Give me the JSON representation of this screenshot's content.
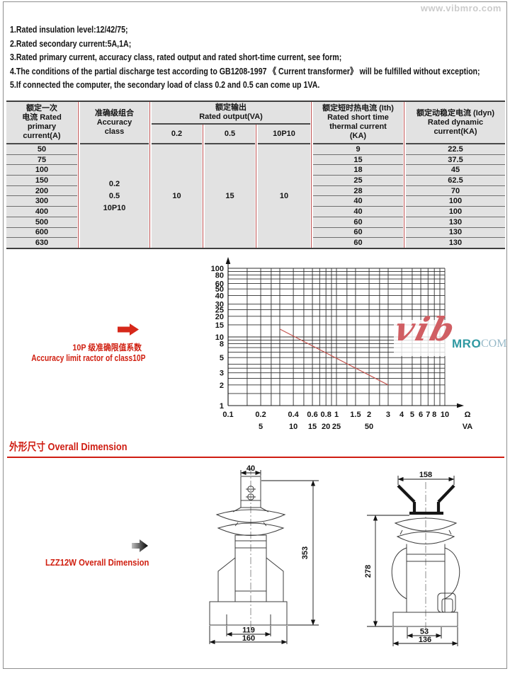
{
  "watermark": "www.vibmro.com",
  "logo": {
    "script": "vib",
    "brand": "MRO",
    "tld": ".COM"
  },
  "notes": [
    "1.Rated insulation level:12/42/75;",
    "2.Rated secondary current:5A,1A;",
    "3.Rated primary current, accuracy class, rated output and rated short-time current, see form;",
    "4.The conditions of the partial discharge test according to GB1208-1997 《 Current transformer》 will be fulfilled without exception;",
    "5.If connected the computer, the secondary load of class 0.2 and 0.5 can come up 1VA."
  ],
  "table": {
    "headers": {
      "primary": "额定一次\n电流 Rated\nprimary\ncurrent(A)",
      "accuracy": "准确级组合\nAccuracy\nclass",
      "output_group": "额定输出\nRated output(VA)",
      "output_cols": [
        "0.2",
        "0.5",
        "10P10"
      ],
      "ith": "额定短时热电流 (Ith)\nRated short time\nthermal current\n(KA)",
      "idyn": "额定动稳定电流 (Idyn)\nRated dynamic\ncurrent(KA)"
    },
    "accuracy_value": "0.2\n0.5\n10P10",
    "output_values": [
      "10",
      "15",
      "10"
    ],
    "rows": [
      {
        "primary": "50",
        "ith": "9",
        "idyn": "22.5"
      },
      {
        "primary": "75",
        "ith": "15",
        "idyn": "37.5"
      },
      {
        "primary": "100",
        "ith": "18",
        "idyn": "45"
      },
      {
        "primary": "150",
        "ith": "25",
        "idyn": "62.5"
      },
      {
        "primary": "200",
        "ith": "28",
        "idyn": "70"
      },
      {
        "primary": "300",
        "ith": "40",
        "idyn": "100"
      },
      {
        "primary": "400",
        "ith": "40",
        "idyn": "100"
      },
      {
        "primary": "500",
        "ith": "60",
        "idyn": "130"
      },
      {
        "primary": "600",
        "ith": "60",
        "idyn": "130"
      },
      {
        "primary": "630",
        "ith": "60",
        "idyn": "130"
      }
    ]
  },
  "chart_annotation": {
    "line1": "10P 级准确限值系数",
    "line2": "Accuracy limit ractor of class10P"
  },
  "chart_data": {
    "type": "line",
    "title": "Accuracy limit factor of class 10P vs burden",
    "grid": true,
    "x_axis": {
      "scale": "log",
      "min": 0.1,
      "max": 10,
      "unit_primary": "Ω",
      "unit_secondary": "VA",
      "gridlines": [
        0.1,
        0.15,
        0.2,
        0.25,
        0.3,
        0.4,
        0.5,
        0.6,
        0.7,
        0.8,
        0.9,
        1,
        1.25,
        1.5,
        2,
        2.5,
        3,
        4,
        5,
        6,
        7,
        8,
        9,
        10
      ],
      "ticks_ohm": [
        {
          "v": 0.1,
          "label": "0.1"
        },
        {
          "v": 0.2,
          "label": "0.2"
        },
        {
          "v": 0.4,
          "label": "0.4"
        },
        {
          "v": 0.6,
          "label": "0.6"
        },
        {
          "v": 0.8,
          "label": "0.8"
        },
        {
          "v": 1,
          "label": "1"
        },
        {
          "v": 1.5,
          "label": "1.5"
        },
        {
          "v": 2,
          "label": "2"
        },
        {
          "v": 3,
          "label": "3"
        },
        {
          "v": 4,
          "label": "4"
        },
        {
          "v": 5,
          "label": "5"
        },
        {
          "v": 6,
          "label": "6"
        },
        {
          "v": 7,
          "label": "7"
        },
        {
          "v": 8,
          "label": "8"
        },
        {
          "v": 10,
          "label": "10"
        }
      ],
      "ticks_va": [
        {
          "v": 0.2,
          "label": "5"
        },
        {
          "v": 0.4,
          "label": "10"
        },
        {
          "v": 0.6,
          "label": "15"
        },
        {
          "v": 0.8,
          "label": "20"
        },
        {
          "v": 1,
          "label": "25"
        },
        {
          "v": 2,
          "label": "50"
        }
      ]
    },
    "y_axis": {
      "scale": "log",
      "min": 1,
      "max": 100,
      "gridlines": [
        1,
        1.5,
        2,
        2.5,
        3,
        3.5,
        4,
        5,
        6,
        7,
        8,
        9,
        10,
        15,
        20,
        25,
        30,
        40,
        50,
        60,
        70,
        80,
        90,
        100
      ],
      "ticks": [
        {
          "v": 1,
          "label": "1"
        },
        {
          "v": 2,
          "label": "2"
        },
        {
          "v": 3,
          "label": "3"
        },
        {
          "v": 5,
          "label": "5"
        },
        {
          "v": 8,
          "label": "8"
        },
        {
          "v": 10,
          "label": "10"
        },
        {
          "v": 15,
          "label": "15"
        },
        {
          "v": 20,
          "label": "20"
        },
        {
          "v": 25,
          "label": "25"
        },
        {
          "v": 30,
          "label": "30"
        },
        {
          "v": 40,
          "label": "40"
        },
        {
          "v": 50,
          "label": "50"
        },
        {
          "v": 60,
          "label": "60"
        },
        {
          "v": 80,
          "label": "80"
        },
        {
          "v": 100,
          "label": "100"
        }
      ]
    },
    "series": [
      {
        "name": "Accuracy limit factor of class 10P",
        "color": "#c4554f",
        "points": [
          [
            0.3,
            13
          ],
          [
            3,
            2
          ]
        ]
      }
    ]
  },
  "section_title": "外形尺寸  Overall Dimension",
  "drawing_label": "LZZ12W Overall Dimension",
  "drawings": {
    "front": {
      "dims": {
        "width_top": "40",
        "height": "353",
        "bottom_inner": "119",
        "bottom_outer": "160"
      }
    },
    "side": {
      "dims": {
        "width_top": "158",
        "height": "278",
        "bottom_inner": "53",
        "bottom_outer": "136"
      }
    }
  },
  "colors": {
    "accent_red": "#cf1d12",
    "table_cell_bg": "#e2e2e2",
    "table_sep_red": "#bf5050",
    "series_red": "#c4554f",
    "logo_teal": "#2f99a2",
    "watermark_gray": "#cbcbcb"
  }
}
